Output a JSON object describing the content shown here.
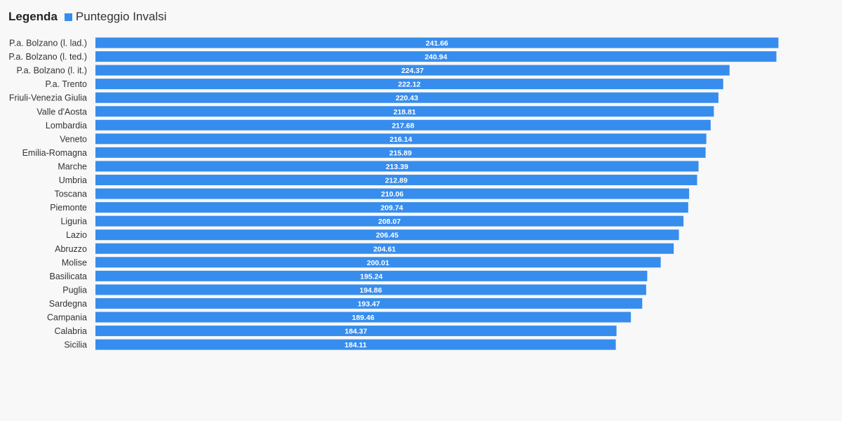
{
  "legend": {
    "title": "Legenda",
    "series_label": "Punteggio Invalsi"
  },
  "colors": {
    "bar": "#378ded",
    "background": "#f8f8f8"
  },
  "chart_data": {
    "type": "bar",
    "orientation": "horizontal",
    "categories": [
      "P.a. Bolzano (l. lad.)",
      "P.a. Bolzano (l. ted.)",
      "P.a. Bolzano (l. it.)",
      "P.a. Trento",
      "Friuli-Venezia Giulia",
      "Valle d'Aosta",
      "Lombardia",
      "Veneto",
      "Emilia-Romagna",
      "Marche",
      "Umbria",
      "Toscana",
      "Piemonte",
      "Liguria",
      "Lazio",
      "Abruzzo",
      "Molise",
      "Basilicata",
      "Puglia",
      "Sardegna",
      "Campania",
      "Calabria",
      "Sicilia"
    ],
    "series": [
      {
        "name": "Punteggio Invalsi",
        "values": [
          241.66,
          240.94,
          224.37,
          222.12,
          220.43,
          218.81,
          217.68,
          216.14,
          215.89,
          213.39,
          212.89,
          210.06,
          209.74,
          208.07,
          206.45,
          204.61,
          200.01,
          195.24,
          194.86,
          193.47,
          189.46,
          184.37,
          184.11
        ]
      }
    ],
    "value_labels": [
      "241.66",
      "240.94",
      "224.37",
      "222.12",
      "220.43",
      "218.81",
      "217.68",
      "216.14",
      "215.89",
      "213.39",
      "212.89",
      "210.06",
      "209.74",
      "208.07",
      "206.45",
      "204.61",
      "200.01",
      "195.24",
      "194.86",
      "193.47",
      "189.46",
      "184.37",
      "184.11"
    ],
    "xlim": [
      0,
      250
    ],
    "grid": false,
    "legend_position": "top-left",
    "title": "",
    "xlabel": "",
    "ylabel": ""
  }
}
